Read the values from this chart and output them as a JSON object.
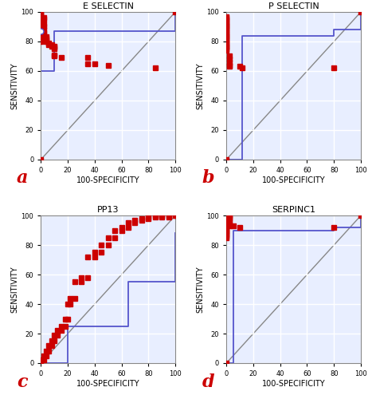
{
  "title_a": "E SELECTIN",
  "title_b": "P SELECTIN",
  "title_c": "PP13",
  "title_d": "SERPINC1",
  "label_a": "a",
  "label_b": "b",
  "label_c": "c",
  "label_d": "d",
  "xlabel": "100-SPECIFICITY",
  "ylabel": "SENSITIVITY",
  "marker_color": "#cc0000",
  "diag_color": "#888888",
  "bg_color": "#e8eeff",
  "grid_color": "#ffffff",
  "roc_color": "#5555cc",
  "roc_lw": 1.3,
  "diag_lw": 1.0,
  "marker_size": 4,
  "e_selectin_roc_x": [
    0,
    0,
    0,
    0,
    0,
    0,
    0,
    0,
    0,
    0,
    0,
    0,
    0,
    0,
    0,
    0,
    0,
    0,
    0,
    0,
    2,
    2,
    2,
    2,
    2,
    2,
    2,
    2,
    4,
    4,
    4,
    4,
    6,
    6,
    8,
    8,
    10,
    10,
    10,
    10,
    10,
    15,
    35,
    35,
    40,
    50,
    85,
    100
  ],
  "e_selectin_roc_y": [
    0,
    80,
    82,
    84,
    85,
    86,
    87,
    88,
    89,
    90,
    91,
    92,
    93,
    94,
    95,
    96,
    97,
    98,
    99,
    100,
    96,
    95,
    92,
    90,
    88,
    86,
    85,
    84,
    83,
    82,
    81,
    80,
    79,
    78,
    78,
    77,
    77,
    76,
    75,
    71,
    70,
    69,
    69,
    65,
    65,
    64,
    62,
    100
  ],
  "e_selectin_ci_x": [
    0,
    0,
    10,
    10,
    35,
    35,
    100,
    100
  ],
  "e_selectin_ci_y": [
    0,
    60,
    60,
    87,
    87,
    87,
    87,
    100
  ],
  "p_selectin_roc_x": [
    0,
    0,
    0,
    0,
    0,
    0,
    0,
    0,
    0,
    0,
    0,
    0,
    0,
    0,
    0,
    0,
    0,
    0,
    0,
    0,
    0,
    0,
    0,
    0,
    0,
    2,
    2,
    2,
    2,
    2,
    10,
    12,
    80,
    100
  ],
  "p_selectin_roc_y": [
    0,
    97,
    96,
    95,
    94,
    93,
    92,
    91,
    90,
    89,
    88,
    87,
    86,
    85,
    84,
    83,
    82,
    81,
    80,
    79,
    78,
    77,
    76,
    75,
    74,
    70,
    68,
    66,
    64,
    63,
    63,
    62,
    62,
    100
  ],
  "p_selectin_ci_x": [
    0,
    0,
    12,
    12,
    80,
    80,
    100,
    100
  ],
  "p_selectin_ci_y": [
    0,
    0,
    0,
    84,
    84,
    88,
    88,
    100
  ],
  "pp13_roc_x": [
    0,
    0,
    2,
    2,
    4,
    4,
    6,
    6,
    8,
    8,
    10,
    10,
    12,
    12,
    15,
    15,
    18,
    18,
    20,
    20,
    22,
    22,
    25,
    25,
    30,
    30,
    35,
    35,
    40,
    40,
    45,
    45,
    50,
    50,
    55,
    55,
    60,
    60,
    65,
    65,
    70,
    70,
    75,
    75,
    80,
    80,
    85,
    85,
    90,
    90,
    95,
    95,
    100,
    100
  ],
  "pp13_roc_y": [
    0,
    2,
    2,
    5,
    5,
    8,
    8,
    12,
    12,
    15,
    15,
    19,
    19,
    22,
    22,
    25,
    25,
    30,
    30,
    40,
    40,
    44,
    44,
    55,
    55,
    58,
    58,
    72,
    72,
    75,
    75,
    80,
    80,
    85,
    85,
    90,
    90,
    92,
    92,
    95,
    95,
    97,
    97,
    98,
    98,
    99,
    99,
    100,
    100,
    99,
    99,
    100,
    100,
    100
  ],
  "pp13_ci_x": [
    0,
    0,
    20,
    20,
    65,
    65,
    100,
    100
  ],
  "pp13_ci_y": [
    0,
    0,
    0,
    25,
    25,
    55,
    55,
    88
  ],
  "serpinc1_roc_x": [
    0,
    0,
    0,
    0,
    0,
    0,
    0,
    0,
    0,
    0,
    0,
    0,
    0,
    0,
    0,
    0,
    0,
    2,
    2,
    2,
    2,
    2,
    2,
    5,
    10,
    80,
    100
  ],
  "serpinc1_roc_y": [
    0,
    85,
    86,
    87,
    88,
    89,
    90,
    91,
    92,
    93,
    94,
    95,
    96,
    97,
    98,
    99,
    100,
    100,
    99,
    98,
    96,
    94,
    93,
    93,
    92,
    92,
    100
  ],
  "serpinc1_ci_x": [
    0,
    0,
    5,
    5,
    80,
    80,
    100,
    100
  ],
  "serpinc1_ci_y": [
    0,
    0,
    0,
    90,
    90,
    92,
    92,
    100
  ]
}
